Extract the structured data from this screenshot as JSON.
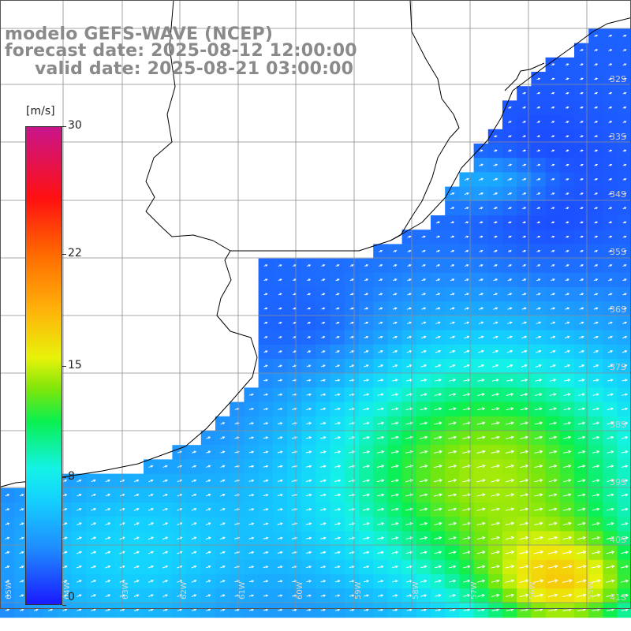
{
  "header": {
    "model": "modelo GEFS-WAVE (NCEP)",
    "forecast": "forecast date: 2025-08-12 12:00:00",
    "valid": "valid date: 2025-08-21 03:00:00"
  },
  "colorbar": {
    "unit": "[m/s]",
    "range": [
      0,
      30
    ],
    "ticks": [
      "30",
      "22",
      "15",
      "8",
      "0"
    ],
    "tick_values": [
      30,
      22,
      15,
      8,
      0
    ],
    "stops": [
      {
        "v": 0,
        "c": "#1a1aff"
      },
      {
        "v": 3.5,
        "c": "#1f8cff"
      },
      {
        "v": 6.5,
        "c": "#14d0ff"
      },
      {
        "v": 8.5,
        "c": "#14f2e8"
      },
      {
        "v": 11.5,
        "c": "#0af050"
      },
      {
        "v": 13.5,
        "c": "#7ce60a"
      },
      {
        "v": 15.5,
        "c": "#e8f20a"
      },
      {
        "v": 18.5,
        "c": "#ffb20a"
      },
      {
        "v": 22,
        "c": "#ff6a00"
      },
      {
        "v": 25.5,
        "c": "#ff1010"
      },
      {
        "v": 30,
        "c": "#c8148c"
      }
    ]
  },
  "map_labels": {
    "latitude": [
      "32S",
      "33S",
      "34S",
      "35S",
      "36S",
      "37S",
      "38S",
      "39S",
      "40S",
      "41S"
    ],
    "longitude": [
      "65W",
      "64W",
      "63W",
      "62W",
      "61W",
      "60W",
      "59W",
      "58W",
      "57W",
      "56W",
      "55W"
    ]
  },
  "colors": {
    "title_gray": "#8a8a8a",
    "grid": "#8c8c8c",
    "coast": "#000000",
    "arrows": "#ffffff",
    "land": "#ffffff"
  }
}
